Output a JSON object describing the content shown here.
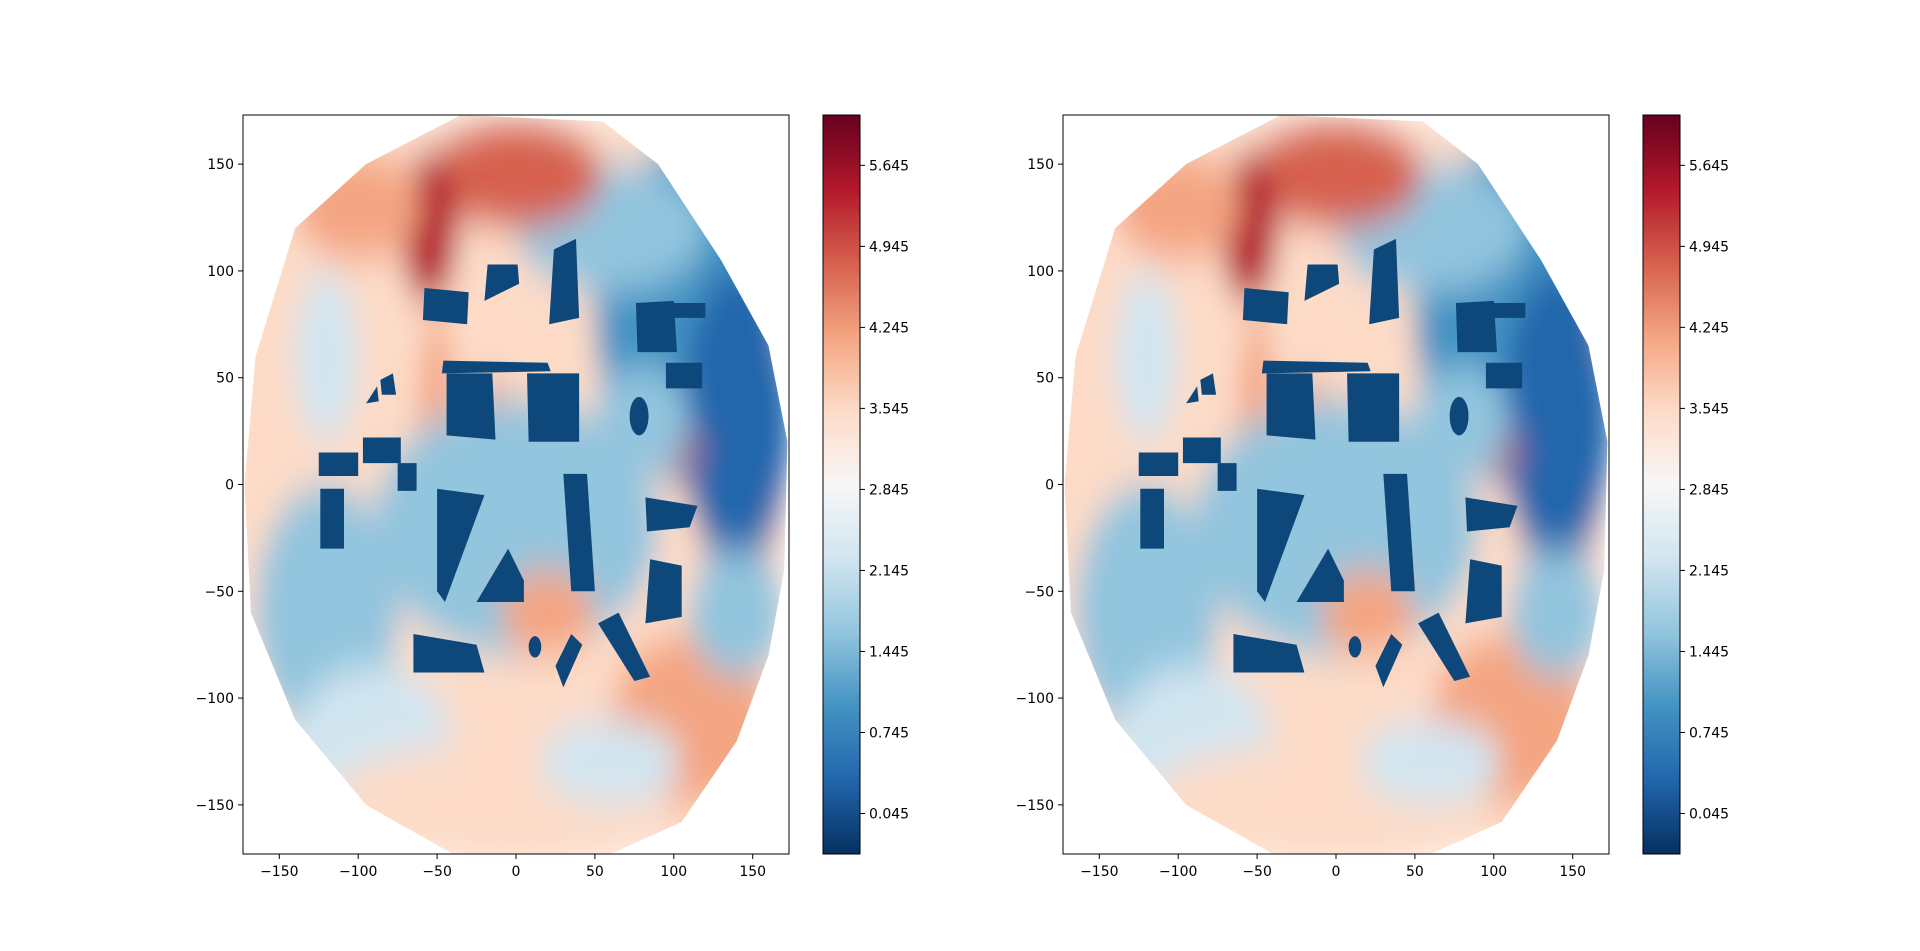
{
  "chart_data": [
    {
      "type": "heatmap",
      "title": "",
      "xlabel": "",
      "ylabel": "",
      "xlim": [
        -173,
        173
      ],
      "ylim": [
        -173,
        173
      ],
      "x_ticks": [
        -150,
        -100,
        -50,
        0,
        50,
        100,
        150
      ],
      "y_ticks": [
        -150,
        -100,
        -50,
        0,
        50,
        100,
        150
      ],
      "x_tick_labels": [
        "−150",
        "−100",
        "−50",
        "0",
        "50",
        "100",
        "150"
      ],
      "y_tick_labels": [
        "−150",
        "−100",
        "−50",
        "0",
        "50",
        "100",
        "150"
      ],
      "colormap": "RdBu_r",
      "colorbar": {
        "range": [
          -0.305,
          6.08
        ],
        "ticks": [
          0.045,
          0.745,
          1.445,
          2.145,
          2.845,
          3.545,
          4.245,
          4.945,
          5.645
        ],
        "tick_labels": [
          "0.045",
          "0.745",
          "1.445",
          "2.145",
          "2.845",
          "3.545",
          "4.245",
          "4.945",
          "5.645"
        ]
      }
    },
    {
      "type": "heatmap",
      "title": "",
      "xlabel": "",
      "ylabel": "",
      "xlim": [
        -173,
        173
      ],
      "ylim": [
        -173,
        173
      ],
      "x_ticks": [
        -150,
        -100,
        -50,
        0,
        50,
        100,
        150
      ],
      "y_ticks": [
        -150,
        -100,
        -50,
        0,
        50,
        100,
        150
      ],
      "x_tick_labels": [
        "−150",
        "−100",
        "−50",
        "0",
        "50",
        "100",
        "150"
      ],
      "y_tick_labels": [
        "−150",
        "−100",
        "−50",
        "0",
        "50",
        "100",
        "150"
      ],
      "colormap": "RdBu_r",
      "colorbar": {
        "range": [
          -0.305,
          6.08
        ],
        "ticks": [
          0.045,
          0.745,
          1.445,
          2.145,
          2.845,
          3.545,
          4.245,
          4.945,
          5.645
        ],
        "tick_labels": [
          "0.045",
          "0.745",
          "1.445",
          "2.145",
          "2.845",
          "3.545",
          "4.245",
          "4.945",
          "5.645"
        ]
      }
    }
  ],
  "colors": {
    "obstacle": "#0e4779",
    "colormap_stops": [
      "#053061",
      "#2166ac",
      "#4393c3",
      "#92c5de",
      "#d1e5f0",
      "#f7f7f7",
      "#fddbc7",
      "#f4a582",
      "#d6604d",
      "#b2182b",
      "#67001f"
    ]
  }
}
